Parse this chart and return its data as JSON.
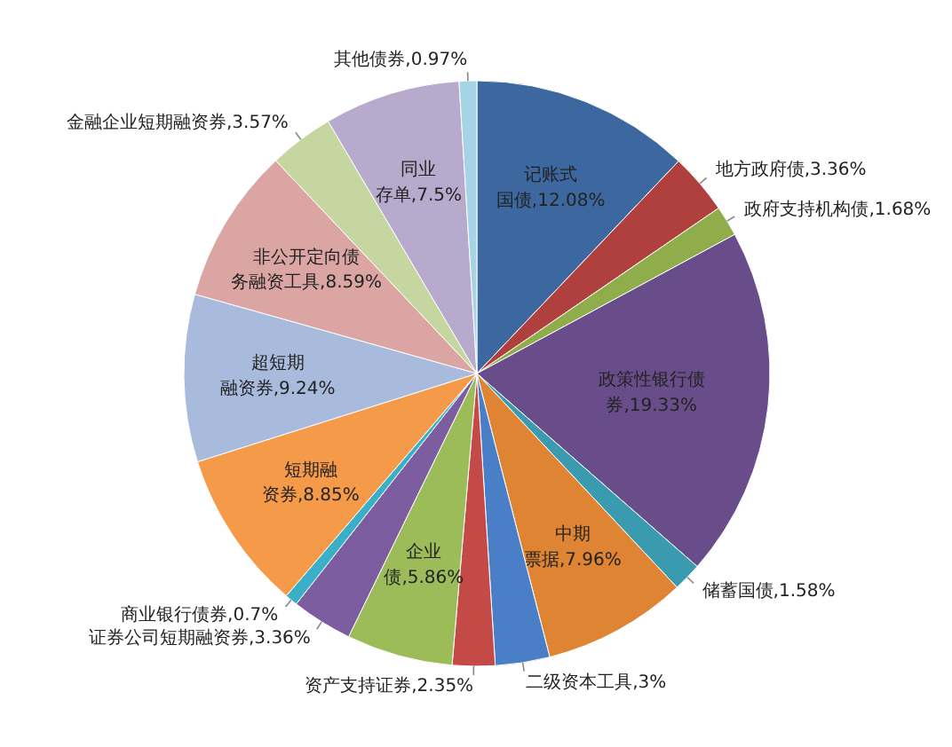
{
  "chart_data": {
    "type": "pie",
    "categories": [
      "记账式国债",
      "地方政府债",
      "政府支持机构债",
      "政策性银行债券",
      "储蓄国债",
      "中期票据",
      "二级资本工具",
      "资产支持证券",
      "企业债",
      "证券公司短期融资券",
      "商业银行债券",
      "短期融资券",
      "超短期融资券",
      "非公开定向债务融资工具",
      "金融企业短期融资券",
      "同业存单",
      "其他债券"
    ],
    "values": [
      12.08,
      3.36,
      1.68,
      19.33,
      1.58,
      7.96,
      3,
      2.35,
      5.86,
      3.36,
      0.7,
      8.85,
      9.24,
      8.59,
      3.57,
      7.5,
      0.97
    ],
    "value_labels": [
      "12.08%",
      "3.36%",
      "1.68%",
      "19.33%",
      "1.58%",
      "7.96%",
      "3%",
      "2.35%",
      "5.86%",
      "3.36%",
      "0.7%",
      "8.85%",
      "9.24%",
      "8.59%",
      "3.57%",
      "7.5%",
      "0.97%"
    ],
    "colors": [
      "#3c679f",
      "#b0403d",
      "#8fad4a",
      "#684d8a",
      "#3a9bb0",
      "#de8432",
      "#4a7fc8",
      "#c44a48",
      "#9cbb59",
      "#7c5ea0",
      "#3ab0c8",
      "#f59a48",
      "#a9bbdc",
      "#dba5a4",
      "#c5d6a0",
      "#b7aacc",
      "#a5d4e4"
    ]
  }
}
